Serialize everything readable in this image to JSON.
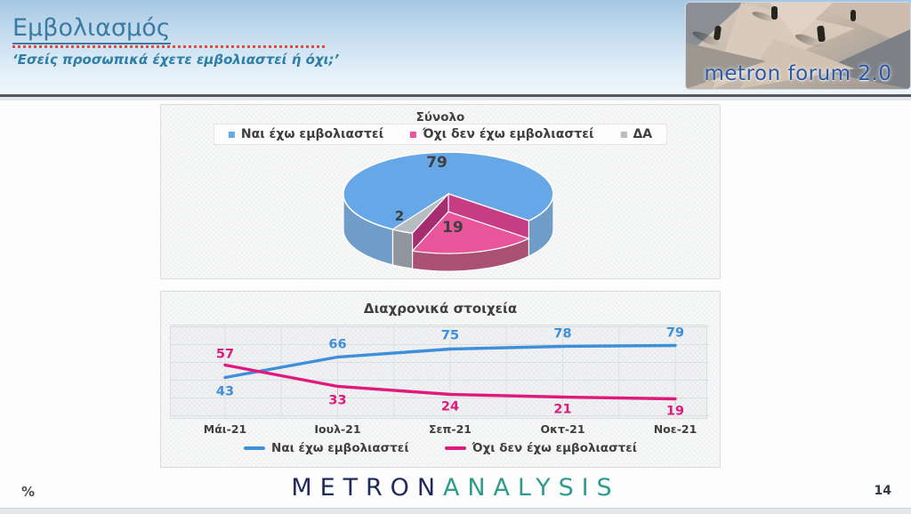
{
  "header": {
    "title": "Εμβολιασμός",
    "subtitle": "‘Εσείς προσωπικά έχετε εμβολιαστεί ή όχι;’",
    "logo_text": "metron forum 2.0"
  },
  "pie_panel": {
    "title": "Σύνολο"
  },
  "chart_data": [
    {
      "type": "pie",
      "title": "Σύνολο",
      "labels": [
        "Ναι έχω εμβολιαστεί",
        "Όχι δεν έχω εμβολιαστεί",
        "ΔΑ"
      ],
      "values": [
        79,
        19,
        2
      ],
      "colors": [
        "#66a7e8",
        "#e9559b",
        "#b6bcc2"
      ],
      "style": "3d-exploded",
      "legend_position": "top"
    },
    {
      "type": "line",
      "title": "Διαχρονικά στοιχεία",
      "categories": [
        "Μάι-21",
        "Ιουλ-21",
        "Σεπ-21",
        "Οκτ-21",
        "Νοε-21"
      ],
      "ylim": [
        0,
        100
      ],
      "grid": true,
      "legend_position": "bottom",
      "series": [
        {
          "name": "Ναι έχω εμβολιαστεί",
          "color": "#3d8edb",
          "values": [
            43,
            66,
            75,
            78,
            79
          ],
          "label_dy": [
            20,
            -10,
            -11,
            -10,
            -10
          ],
          "label_leader": [
            false,
            false,
            false,
            false,
            false
          ]
        },
        {
          "name": "Όχι δεν έχω εμβολιαστεί",
          "color": "#e0197d",
          "values": [
            57,
            33,
            24,
            21,
            19
          ],
          "label_dy": [
            -8,
            20,
            18,
            18,
            18
          ],
          "label_leader": [
            false,
            true,
            false,
            false,
            true
          ]
        }
      ]
    }
  ],
  "footer": {
    "percent_note": "%",
    "brand_primary": "METRON",
    "brand_secondary": "ANALYSIS",
    "page_number": "14"
  }
}
